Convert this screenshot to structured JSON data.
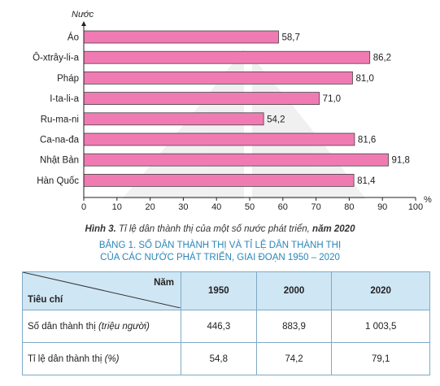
{
  "chart_data": {
    "type": "bar",
    "orientation": "horizontal",
    "ylabel": "Nước",
    "xlabel": "%",
    "xlim": [
      0,
      100
    ],
    "xticks": [
      0,
      10,
      20,
      30,
      40,
      50,
      60,
      70,
      80,
      90,
      100
    ],
    "categories": [
      "Áo",
      "Ô-xtrây-li-a",
      "Pháp",
      "I-ta-li-a",
      "Ru-ma-ni",
      "Ca-na-đa",
      "Nhật Bản",
      "Hàn Quốc"
    ],
    "values": [
      58.7,
      86.2,
      81.0,
      71.0,
      54.2,
      81.6,
      91.8,
      81.4
    ],
    "value_labels": [
      "58,7",
      "86,2",
      "81,0",
      "71,0",
      "54,2",
      "81,6",
      "91,8",
      "81,4"
    ],
    "bar_color": "#f07bb3",
    "caption_prefix": "Hình 3.",
    "caption_text": " Tỉ lệ dân thành thị của một số nước phát triển, ",
    "caption_year": "năm 2020"
  },
  "table": {
    "title_line1": "BẢNG 1. SỐ DÂN THÀNH THỊ VÀ TỈ LỆ DÂN THÀNH THỊ",
    "title_line2": "CỦA CÁC NƯỚC PHÁT TRIỂN, GIAI ĐOẠN 1950 – 2020",
    "header_year_label": "Năm",
    "header_criteria_label": "Tiêu chí",
    "years": [
      "1950",
      "2000",
      "2020"
    ],
    "rows": [
      {
        "label": "Số dân thành thị ",
        "unit": "(triệu người)",
        "values": [
          "446,3",
          "883,9",
          "1 003,5"
        ]
      },
      {
        "label": "Tỉ lệ dân thành thị ",
        "unit": "(%)",
        "values": [
          "54,8",
          "74,2",
          "79,1"
        ]
      }
    ]
  }
}
